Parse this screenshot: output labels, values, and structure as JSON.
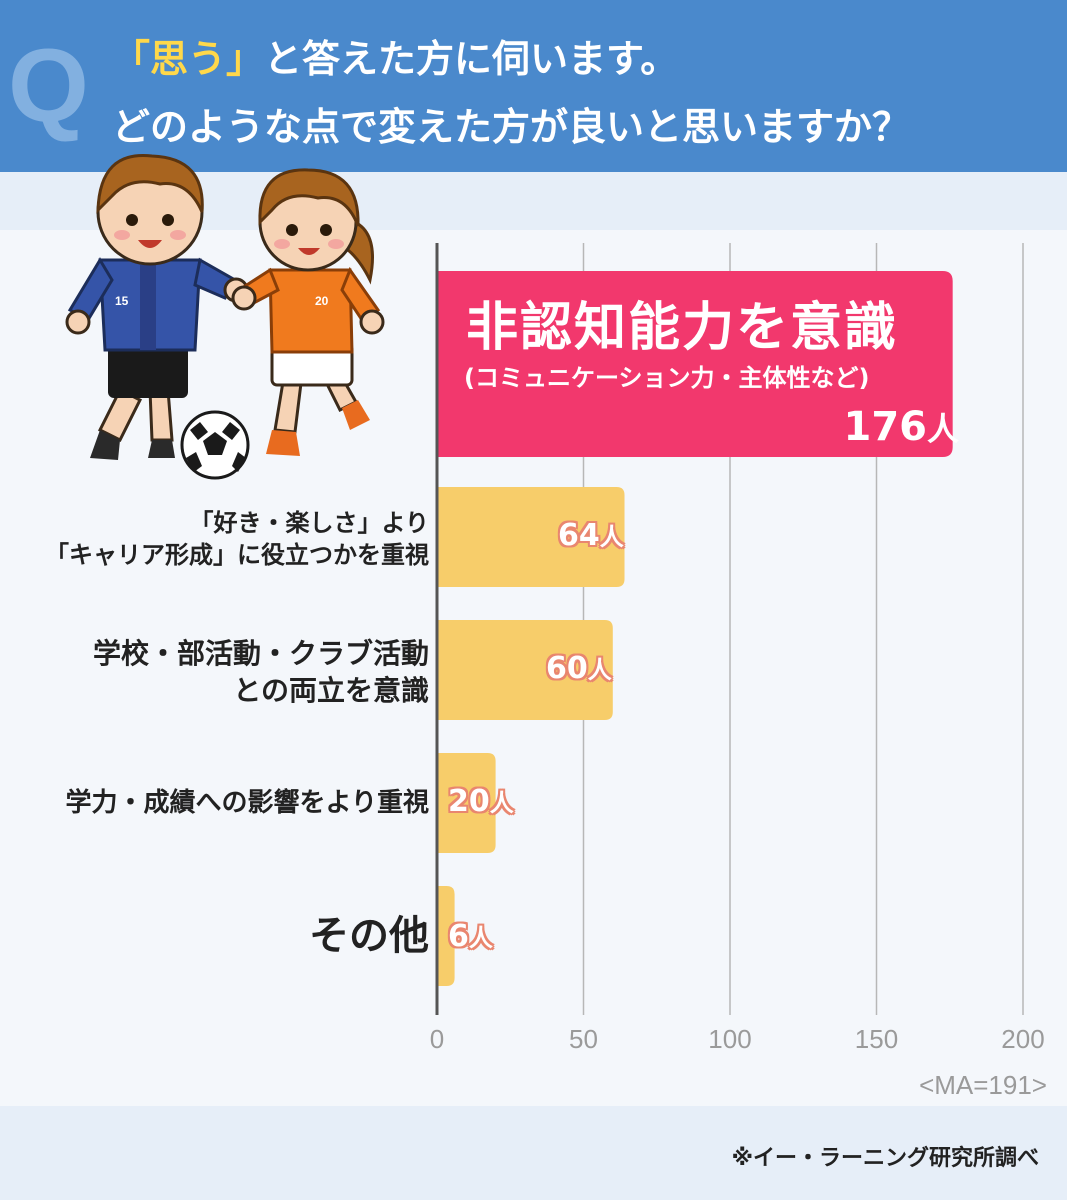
{
  "header": {
    "q_mark": "Q",
    "line1_highlight": "「思う」",
    "line1_rest": "と答えた方に伺います。",
    "line2": "どのような点で変えた方が良いと思いますか？"
  },
  "chart_data": {
    "type": "bar",
    "orientation": "horizontal",
    "categories": [
      "非認知能力を意識（コミュニケーション力・主体性など）",
      "「好き・楽しさ」より「キャリア形成」に役立つかを重視",
      "学校・部活動・クラブ活動との両立を意識",
      "学力・成績への影響をより重視",
      "その他"
    ],
    "values": [
      176,
      64,
      60,
      20,
      6
    ],
    "unit": "人",
    "xlim": [
      0,
      200
    ],
    "xticks": [
      "0",
      "50",
      "100",
      "150",
      "200"
    ],
    "grid": true,
    "colors": {
      "highlight": "#f2386d",
      "bar": "#f7cd6a",
      "value_outline": "#e9866f"
    },
    "bars": [
      {
        "label_main": "非認知能力を意識",
        "label_sub": "(コミュニケーション力・主体性など)",
        "value_num": "176",
        "value_unit": "人"
      },
      {
        "label_line1": "「好き・楽しさ」より",
        "label_line2": "「キャリア形成」に役立つかを重視",
        "value_num": "64",
        "value_unit": "人"
      },
      {
        "label_line1": "学校・部活動・クラブ活動",
        "label_line2": "との両立を意識",
        "value_num": "60",
        "value_unit": "人"
      },
      {
        "label_line1": "学力・成績への影響をより重視",
        "value_num": "20",
        "value_unit": "人"
      },
      {
        "label_line1": "その他",
        "value_num": "6",
        "value_unit": "人"
      }
    ],
    "note": "<MA=191>"
  },
  "footer": {
    "source": "※イー・ラーニング研究所調べ"
  },
  "illustration": {
    "jersey_left": "15",
    "jersey_right": "20"
  }
}
